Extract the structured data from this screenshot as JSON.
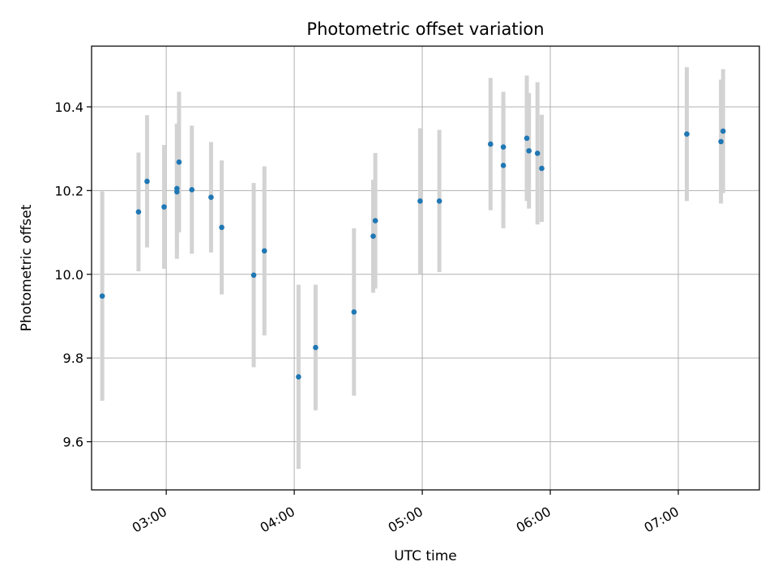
{
  "chart_data": {
    "type": "scatter",
    "title": "Photometric offset variation",
    "xlabel": "UTC time",
    "ylabel": "Photometric offset",
    "xlim": [
      "02:25",
      "07:38"
    ],
    "ylim": [
      9.485,
      10.545
    ],
    "x_ticks": [
      "03:00",
      "04:00",
      "05:00",
      "06:00",
      "07:00"
    ],
    "y_ticks": [
      9.6,
      9.8,
      10.0,
      10.2,
      10.4
    ],
    "y_tick_labels": [
      "9.6",
      "9.8",
      "10.0",
      "10.2",
      "10.4"
    ],
    "grid": true,
    "colors": {
      "point": "#1f77b4",
      "error_bar": "#d3d3d3",
      "grid": "#b0b0b0"
    },
    "points": [
      {
        "x": "02:30",
        "y": 9.948,
        "err": 0.25
      },
      {
        "x": "02:47",
        "y": 10.149,
        "err": 0.142
      },
      {
        "x": "02:51",
        "y": 10.222,
        "err": 0.158
      },
      {
        "x": "02:59",
        "y": 10.161,
        "err": 0.148
      },
      {
        "x": "03:05",
        "y": 10.197,
        "err": 0.16
      },
      {
        "x": "03:05",
        "y": 10.205,
        "err": 0.155
      },
      {
        "x": "03:06",
        "y": 10.268,
        "err": 0.168
      },
      {
        "x": "03:12",
        "y": 10.202,
        "err": 0.153
      },
      {
        "x": "03:21",
        "y": 10.184,
        "err": 0.132
      },
      {
        "x": "03:26",
        "y": 10.112,
        "err": 0.16
      },
      {
        "x": "03:41",
        "y": 9.998,
        "err": 0.22
      },
      {
        "x": "03:46",
        "y": 10.056,
        "err": 0.202
      },
      {
        "x": "04:02",
        "y": 9.755,
        "err": 0.22
      },
      {
        "x": "04:10",
        "y": 9.825,
        "err": 0.15
      },
      {
        "x": "04:28",
        "y": 9.91,
        "err": 0.2
      },
      {
        "x": "04:37",
        "y": 10.091,
        "err": 0.135
      },
      {
        "x": "04:38",
        "y": 10.128,
        "err": 0.162
      },
      {
        "x": "04:59",
        "y": 10.175,
        "err": 0.174
      },
      {
        "x": "05:08",
        "y": 10.175,
        "err": 0.17
      },
      {
        "x": "05:32",
        "y": 10.311,
        "err": 0.158
      },
      {
        "x": "05:38",
        "y": 10.304,
        "err": 0.132
      },
      {
        "x": "05:38",
        "y": 10.26,
        "err": 0.15
      },
      {
        "x": "05:49",
        "y": 10.325,
        "err": 0.15
      },
      {
        "x": "05:50",
        "y": 10.295,
        "err": 0.138
      },
      {
        "x": "05:54",
        "y": 10.289,
        "err": 0.17
      },
      {
        "x": "05:56",
        "y": 10.253,
        "err": 0.128
      },
      {
        "x": "07:04",
        "y": 10.335,
        "err": 0.16
      },
      {
        "x": "07:20",
        "y": 10.317,
        "err": 0.148
      },
      {
        "x": "07:21",
        "y": 10.342,
        "err": 0.148
      }
    ]
  }
}
